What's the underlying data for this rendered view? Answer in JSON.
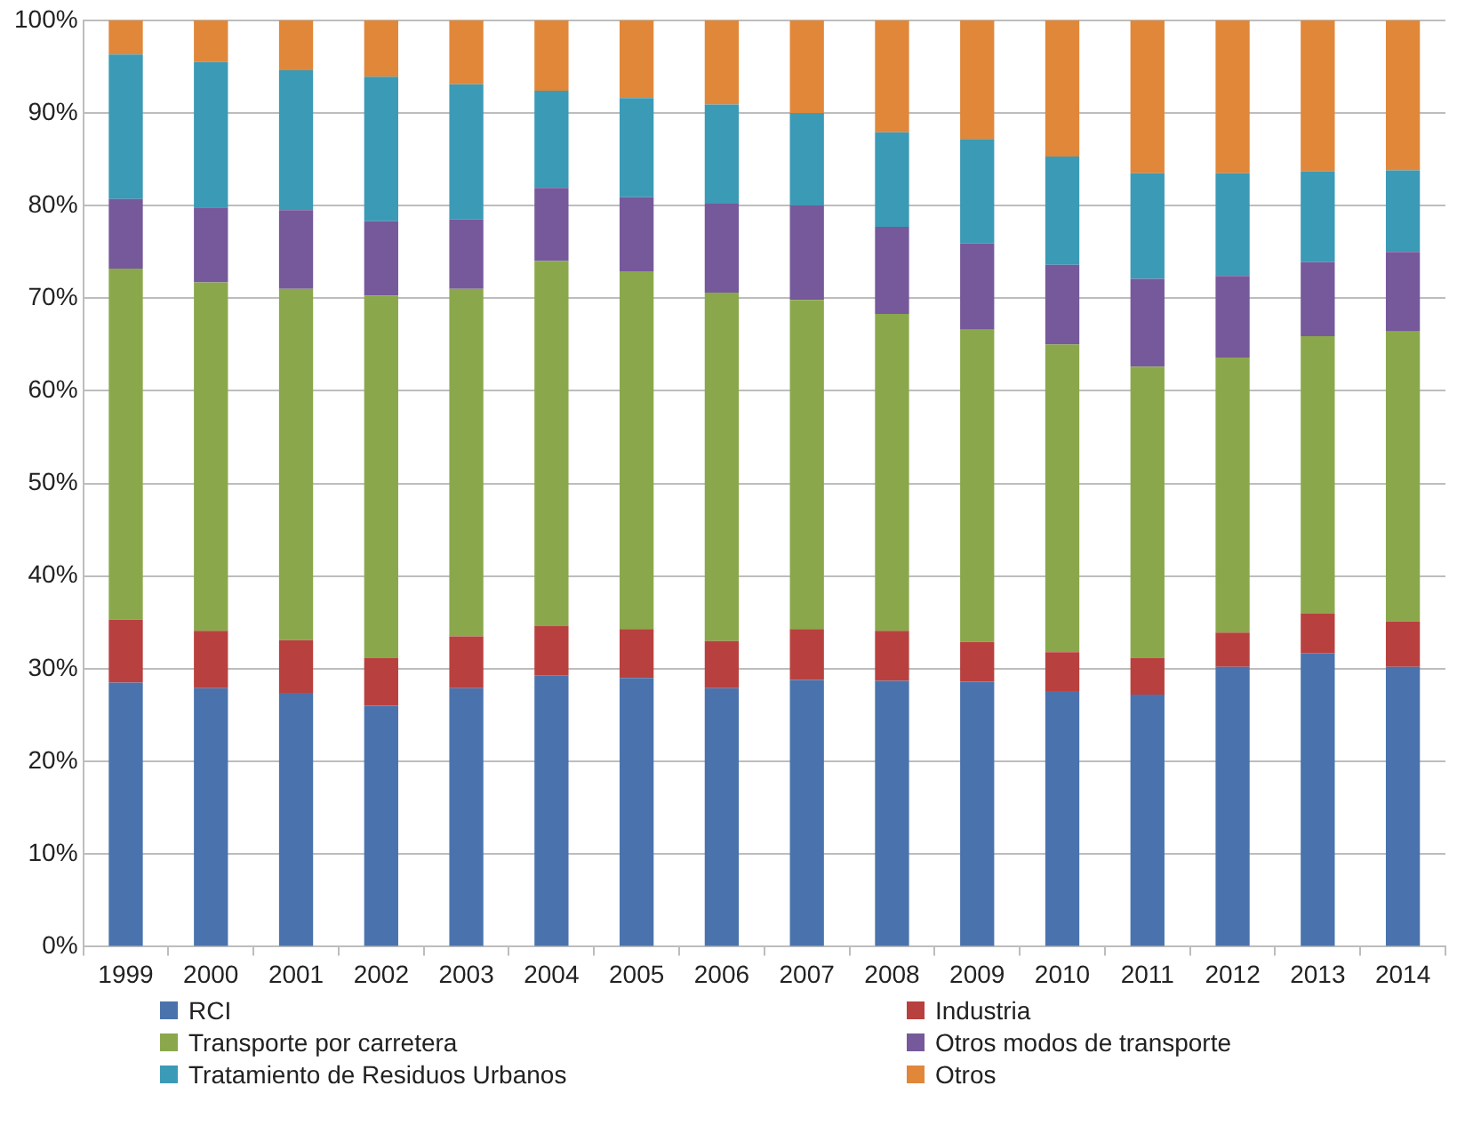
{
  "chart_data": {
    "type": "bar",
    "stacked": true,
    "categories": [
      "1999",
      "2000",
      "2001",
      "2002",
      "2003",
      "2004",
      "2005",
      "2006",
      "2007",
      "2008",
      "2009",
      "2010",
      "2011",
      "2012",
      "2013",
      "2014"
    ],
    "series": [
      {
        "name": "RCI",
        "color": "#4a73ad",
        "values": [
          28.5,
          27.9,
          27.4,
          26.0,
          27.9,
          29.3,
          29.0,
          27.9,
          28.8,
          28.7,
          28.6,
          27.6,
          27.2,
          30.2,
          31.7,
          30.2
        ]
      },
      {
        "name": "Industria",
        "color": "#b8413f",
        "values": [
          6.8,
          6.2,
          5.7,
          5.2,
          5.6,
          5.3,
          5.3,
          5.1,
          5.5,
          5.4,
          4.3,
          4.2,
          4.0,
          3.7,
          4.3,
          4.9
        ]
      },
      {
        "name": "Transporte por carretera",
        "color": "#8aa84b",
        "values": [
          37.9,
          37.6,
          37.9,
          39.1,
          37.5,
          39.4,
          38.6,
          37.6,
          35.5,
          34.2,
          33.7,
          33.2,
          31.4,
          29.7,
          29.9,
          31.3
        ]
      },
      {
        "name": "Otros modos de transporte",
        "color": "#76599a",
        "values": [
          7.5,
          8.1,
          8.5,
          8.0,
          7.5,
          7.9,
          8.0,
          9.6,
          10.2,
          9.4,
          9.3,
          8.6,
          9.5,
          8.8,
          8.0,
          8.6
        ]
      },
      {
        "name": "Tratamiento de Residuos Urbanos",
        "color": "#3b9ab5",
        "values": [
          15.6,
          15.7,
          15.1,
          15.6,
          14.6,
          10.5,
          10.7,
          10.7,
          10.0,
          10.2,
          11.3,
          11.7,
          11.4,
          11.1,
          9.8,
          8.8
        ]
      },
      {
        "name": "Otros",
        "color": "#e0873a",
        "values": [
          3.7,
          4.5,
          5.4,
          6.1,
          6.9,
          7.6,
          8.4,
          9.1,
          10.0,
          12.1,
          12.8,
          14.7,
          16.5,
          16.5,
          16.3,
          16.2
        ]
      }
    ],
    "ylim": [
      0,
      100
    ],
    "yticks": [
      {
        "value": 0,
        "label": "0%"
      },
      {
        "value": 10,
        "label": "10%"
      },
      {
        "value": 20,
        "label": "20%"
      },
      {
        "value": 30,
        "label": "30%"
      },
      {
        "value": 40,
        "label": "40%"
      },
      {
        "value": 50,
        "label": "50%"
      },
      {
        "value": 60,
        "label": "60%"
      },
      {
        "value": 70,
        "label": "70%"
      },
      {
        "value": 80,
        "label": "80%"
      },
      {
        "value": 90,
        "label": "90%"
      },
      {
        "value": 100,
        "label": "100%"
      }
    ],
    "grid": "y",
    "legend": "bottom"
  }
}
